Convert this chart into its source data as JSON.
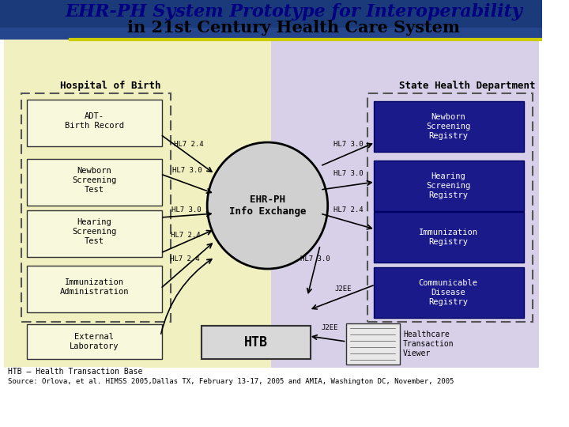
{
  "title_line1": "EHR-PH System Prototype for Interoperability",
  "title_line2": "in 21st Century Health Care System",
  "title_fontsize": 16,
  "header_bg": "#1a3a7a",
  "left_bg": "#f0f0c0",
  "right_bg": "#d8d0e8",
  "left_label": "Hospital of Birth",
  "right_label": "State Health Department",
  "left_boxes": [
    "ADT-\nBirth Record",
    "Newborn\nScreening\nTest",
    "Hearing\nScreening\nTest",
    "Immunization\nAdministration"
  ],
  "extra_left_box": "External\nLaboratory",
  "left_box_color": "#f0f0c0",
  "right_boxes": [
    "Newborn\nScreening\nRegistry",
    "Hearing\nScreening\nRegistry",
    "Immunization\nRegistry",
    "Communicable\nDisease\nRegistry"
  ],
  "right_box_color": "#1a1a8a",
  "right_box_text_color": "#ffffff",
  "center_label": "EHR-PH\nInfo Exchange",
  "htb_label": "HTB",
  "htb_note": "HTB – Health Transaction Base",
  "viewer_label": "Healthcare\nTransaction\nViewer",
  "source_text": "Source: Orlova, et al. HIMSS 2005,Dallas TX, February 13-17, 2005 and AMIA, Washington DC, November, 2005",
  "left_arrows": [
    "HL7 2.4",
    "HL7 3.0",
    "HL7 3.0",
    "HL7 2.4",
    "HL7 2.4"
  ],
  "right_arrows": [
    "HL7 3.0",
    "HL7 3.0",
    "HL7 2.4",
    "HL7 3.0"
  ],
  "htb_arrows": [
    "J2EE",
    "J2EE"
  ]
}
